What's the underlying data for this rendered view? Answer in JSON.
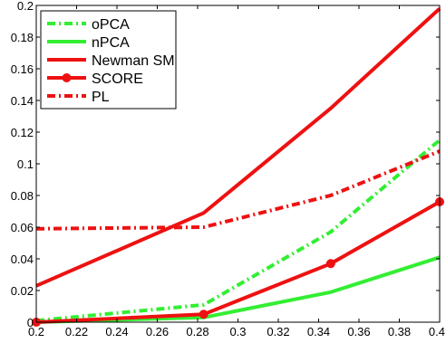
{
  "chart_data": {
    "type": "line",
    "title": "",
    "xlabel": "",
    "ylabel": "",
    "xlim": [
      0.2,
      0.4
    ],
    "ylim": [
      0,
      0.2
    ],
    "x_ticks": [
      0.2,
      0.22,
      0.24,
      0.26,
      0.28,
      0.3,
      0.32,
      0.34,
      0.36,
      0.38,
      0.4
    ],
    "x_tick_labels": [
      "0.2",
      "0.22",
      "0.24",
      "0.26",
      "0.28",
      "0.3",
      "0.32",
      "0.34",
      "0.36",
      "0.38",
      "0.4"
    ],
    "y_ticks": [
      0,
      0.02,
      0.04,
      0.06,
      0.08,
      0.1,
      0.12,
      0.14,
      0.16,
      0.18,
      0.2
    ],
    "y_tick_labels": [
      "0",
      "0.02",
      "0.04",
      "0.06",
      "0.08",
      "0.1",
      "0.12",
      "0.14",
      "0.16",
      "0.18",
      "0.2"
    ],
    "grid": false,
    "legend_position": "top-left",
    "x": [
      0.2,
      0.283,
      0.346,
      0.4
    ],
    "series": [
      {
        "name": "oPCA",
        "values": [
          0.001,
          0.011,
          0.057,
          0.115
        ],
        "color": "#33ee33",
        "line_style": "dashdot",
        "marker": "none"
      },
      {
        "name": "nPCA",
        "values": [
          0.0,
          0.003,
          0.019,
          0.041
        ],
        "color": "#33ee33",
        "line_style": "solid",
        "marker": "none"
      },
      {
        "name": "Newman SM",
        "values": [
          0.023,
          0.069,
          0.135,
          0.198
        ],
        "color": "#ee1111",
        "line_style": "solid",
        "marker": "none"
      },
      {
        "name": "SCORE",
        "values": [
          0.0,
          0.005,
          0.037,
          0.076
        ],
        "color": "#ee1111",
        "line_style": "solid",
        "marker": "circle"
      },
      {
        "name": "PL",
        "values": [
          0.059,
          0.06,
          0.08,
          0.108
        ],
        "color": "#ee1111",
        "line_style": "dashdot",
        "marker": "none"
      }
    ]
  }
}
